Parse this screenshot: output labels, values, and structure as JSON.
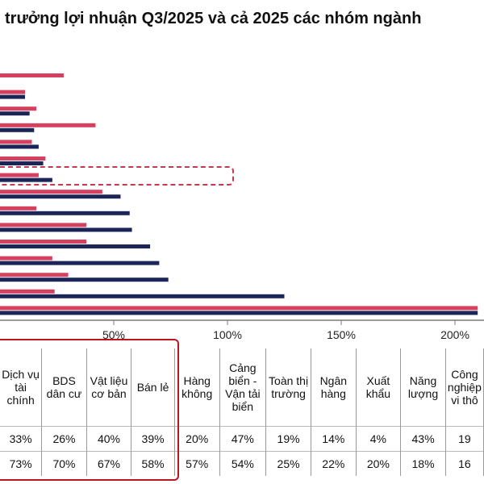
{
  "title": "trưởng lợi nhuận Q3/2025 và cả 2025 các nhóm ngành",
  "colors": {
    "series_q3": "#d5405e",
    "series_2025": "#1b2557",
    "highlight": "#c0131e"
  },
  "chart_data": {
    "type": "bar",
    "orientation": "horizontal",
    "title": "trưởng lợi nhuận Q3/2025 và cả 2025 các nhóm ngành",
    "xlim": [
      0,
      2.1
    ],
    "xticks": [
      0.5,
      1.0,
      1.5,
      2.0
    ],
    "xtick_labels": [
      "50%",
      "100%",
      "150%",
      "200%"
    ],
    "categories": [
      "",
      "",
      "",
      "",
      "",
      "",
      "",
      "",
      "",
      "",
      "",
      "",
      "",
      "",
      ""
    ],
    "series": [
      {
        "values": [
          0.28,
          0.11,
          0.16,
          0.42,
          0.14,
          0.2,
          0.17,
          0.45,
          0.16,
          0.38,
          0.38,
          0.23,
          0.3,
          0.24,
          2.1
        ]
      },
      {
        "values": [
          0.0,
          0.11,
          0.13,
          0.15,
          0.17,
          0.19,
          0.23,
          0.53,
          0.57,
          0.58,
          0.66,
          0.7,
          0.74,
          1.25,
          2.1
        ]
      }
    ]
  },
  "table": {
    "headers": [
      "Dịch vụ tài chính",
      "BDS dân cư",
      "Vật liệu cơ bản",
      "Bán lẻ",
      "Hàng không",
      "Cảng biển - Vận tải biển",
      "Toàn thị trường",
      "Ngân hàng",
      "Xuất khẩu",
      "Năng lượng",
      "Công nghiệp vi thô"
    ],
    "row_q3": [
      "33%",
      "26%",
      "40%",
      "39%",
      "20%",
      "47%",
      "19%",
      "14%",
      "4%",
      "43%",
      "19"
    ],
    "row_2025": [
      "73%",
      "70%",
      "67%",
      "58%",
      "57%",
      "54%",
      "25%",
      "22%",
      "20%",
      "18%",
      "16"
    ]
  }
}
